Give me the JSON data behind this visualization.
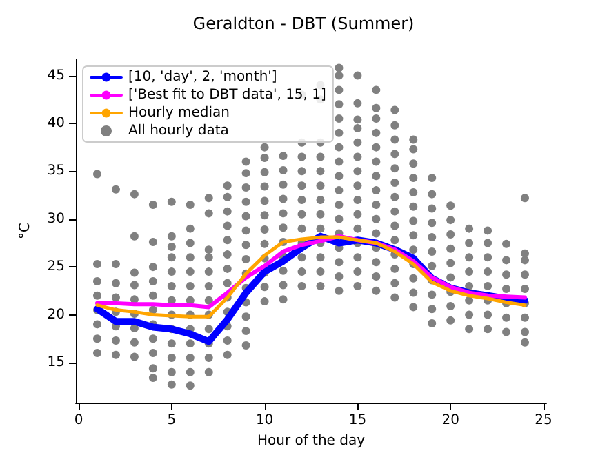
{
  "chart_data": {
    "type": "line",
    "title": "Geraldton - DBT (Summer)",
    "xlabel": "Hour of the day",
    "ylabel": "°C",
    "xlim": [
      -0.15,
      25.15
    ],
    "xticks": [
      0,
      5,
      10,
      15,
      20,
      25
    ],
    "ylim": [
      10.8,
      46.7
    ],
    "yticks": [
      15,
      20,
      25,
      30,
      35,
      40,
      45
    ],
    "grid": false,
    "legend": "top left",
    "line_style": "solid",
    "series": [
      {
        "name": "[10, 'day', 2, 'month']",
        "color": "#0000ff",
        "marker": "none",
        "x": [
          1,
          2,
          3,
          4,
          5,
          6,
          7,
          8,
          9,
          10,
          11,
          12,
          13,
          14,
          15,
          16,
          17,
          18,
          19,
          20,
          21,
          22,
          23,
          24
        ],
        "values": [
          20.6,
          19.3,
          19.3,
          18.7,
          18.5,
          18.0,
          17.2,
          19.5,
          22.3,
          24.5,
          25.6,
          27.0,
          28.2,
          27.5,
          27.8,
          27.5,
          26.8,
          25.9,
          23.8,
          22.8,
          22.3,
          22.0,
          21.7,
          21.5
        ]
      },
      {
        "name": "['Best fit to DBT data', 15, 1]",
        "color": "#ff00ff",
        "marker": "none",
        "x": [
          1,
          2,
          3,
          4,
          5,
          6,
          7,
          8,
          9,
          10,
          11,
          12,
          13,
          14,
          15,
          16,
          17,
          18,
          19,
          20,
          21,
          22,
          23,
          24
        ],
        "values": [
          21.2,
          21.2,
          21.1,
          21.1,
          21.0,
          21.0,
          20.8,
          22.3,
          23.9,
          25.1,
          26.6,
          27.3,
          27.7,
          28.2,
          27.8,
          27.5,
          26.8,
          25.6,
          23.9,
          22.9,
          22.3,
          22.0,
          21.9,
          21.8
        ]
      },
      {
        "name": "Hourly median",
        "color": "#ffa500",
        "marker": "none",
        "x": [
          1,
          2,
          3,
          4,
          5,
          6,
          7,
          8,
          9,
          10,
          11,
          12,
          13,
          14,
          15,
          16,
          17,
          18,
          19,
          20,
          21,
          22,
          23,
          24
        ],
        "values": [
          21.0,
          20.5,
          20.3,
          20.0,
          19.9,
          19.8,
          19.8,
          21.8,
          24.3,
          26.2,
          27.6,
          27.9,
          28.1,
          28.1,
          27.8,
          27.5,
          26.6,
          25.3,
          23.4,
          22.5,
          22.0,
          21.7,
          21.3,
          21.0
        ]
      },
      {
        "name": "All hourly data",
        "type": "scatter",
        "color": "#808080",
        "marker": "circle",
        "x": [
          1,
          1,
          1,
          1,
          1,
          1,
          1,
          1,
          2,
          2,
          2,
          2,
          2,
          2,
          2,
          2,
          3,
          3,
          3,
          3,
          3,
          3,
          3,
          3,
          3,
          4,
          4,
          4,
          4,
          4,
          4,
          4,
          4,
          4,
          4,
          4,
          5,
          5,
          5,
          5,
          5,
          5,
          5,
          5,
          5,
          5,
          5,
          5,
          5,
          6,
          6,
          6,
          6,
          6,
          6,
          6,
          6,
          6,
          6,
          6,
          6,
          6,
          7,
          7,
          7,
          7,
          7,
          7,
          7,
          7,
          7,
          7,
          7,
          7,
          8,
          8,
          8,
          8,
          8,
          8,
          8,
          8,
          8,
          8,
          8,
          8,
          8,
          9,
          9,
          9,
          9,
          9,
          9,
          9,
          9,
          9,
          9,
          9,
          9,
          9,
          9,
          10,
          10,
          10,
          10,
          10,
          10,
          10,
          10,
          10,
          10,
          10,
          10,
          11,
          11,
          11,
          11,
          11,
          11,
          11,
          11,
          11,
          11,
          11,
          12,
          12,
          12,
          12,
          12,
          12,
          12,
          12,
          12,
          12,
          12,
          12,
          13,
          13,
          13,
          13,
          13,
          13,
          13,
          13,
          13,
          13,
          13,
          13,
          13,
          14,
          14,
          14,
          14,
          14,
          14,
          14,
          14,
          14,
          14,
          14,
          14,
          14,
          14,
          14,
          14,
          14,
          15,
          15,
          15,
          15,
          15,
          15,
          15,
          15,
          15,
          15,
          15,
          15,
          15,
          15,
          15,
          16,
          16,
          16,
          16,
          16,
          16,
          16,
          16,
          16,
          16,
          16,
          16,
          16,
          16,
          16,
          17,
          17,
          17,
          17,
          17,
          17,
          17,
          17,
          17,
          17,
          17,
          17,
          17,
          17,
          18,
          18,
          18,
          18,
          18,
          18,
          18,
          18,
          18,
          18,
          18,
          18,
          18,
          19,
          19,
          19,
          19,
          19,
          19,
          19,
          19,
          19,
          19,
          19,
          20,
          20,
          20,
          20,
          20,
          20,
          20,
          20,
          20,
          21,
          21,
          21,
          21,
          21,
          21,
          21,
          21,
          22,
          22,
          22,
          22,
          22,
          22,
          22,
          22,
          23,
          23,
          23,
          23,
          23,
          23,
          23,
          24,
          24,
          24,
          24,
          24,
          24,
          24,
          24,
          24
        ],
        "values": [
          16.0,
          17.5,
          19,
          20.5,
          22,
          23.5,
          25.3,
          34.7,
          15.8,
          17.3,
          18.8,
          20.3,
          21.8,
          23.3,
          25.3,
          33.1,
          15.6,
          17.1,
          18.6,
          20.1,
          21.6,
          23.1,
          24.4,
          28.2,
          32.6,
          13.4,
          14.4,
          16,
          17.5,
          19,
          20.5,
          22,
          23.5,
          25,
          27.6,
          31.5,
          12.7,
          14,
          15.5,
          17,
          18.5,
          20,
          21.5,
          23,
          24.5,
          26,
          27.1,
          28.2,
          31.8,
          12.6,
          14,
          15.5,
          17,
          18.5,
          20,
          21.5,
          23,
          24.5,
          26,
          27.5,
          29,
          31.5,
          14,
          15.5,
          17,
          18.5,
          20,
          21.5,
          23,
          24.5,
          26,
          26.8,
          30.6,
          32.2,
          15.8,
          17.3,
          18.8,
          20.3,
          21.8,
          23.3,
          24.8,
          26.3,
          27.8,
          29.3,
          30.8,
          32.3,
          33.5,
          16.8,
          18.3,
          19.8,
          21.3,
          22.8,
          24.3,
          25.8,
          27.3,
          28.8,
          30.3,
          31.8,
          33.3,
          34.8,
          36,
          21.4,
          22.9,
          24.4,
          25.9,
          27.4,
          28.9,
          30.4,
          31.9,
          33.4,
          34.9,
          36.4,
          37.5,
          21.6,
          23.1,
          24.6,
          26.1,
          27.6,
          29.1,
          30.6,
          32.1,
          33.6,
          35.1,
          36.6,
          23,
          24.5,
          26,
          27.5,
          29,
          30.5,
          32,
          33.5,
          35,
          36.5,
          38,
          43,
          23,
          24.5,
          26,
          27.5,
          29,
          30.5,
          32,
          33.5,
          35,
          36.5,
          38,
          42.5,
          44,
          22.5,
          24,
          25.5,
          27,
          28.5,
          30,
          31.5,
          33,
          34.5,
          36,
          37.5,
          39,
          40.5,
          42,
          43.5,
          45,
          45.8,
          23,
          24.5,
          26,
          27.5,
          29,
          30.5,
          32,
          33.5,
          35,
          36.5,
          38,
          39.5,
          40.4,
          42.1,
          45,
          22.5,
          24,
          25.5,
          27,
          28.5,
          30,
          31.5,
          33,
          34.5,
          36,
          37.5,
          39,
          40.5,
          41.6,
          43.5,
          21.8,
          23.3,
          24.8,
          26.3,
          27.8,
          29.3,
          30.8,
          32.3,
          33.8,
          35.3,
          36.8,
          38.3,
          39.8,
          41.4,
          20.8,
          22.3,
          23.8,
          25.3,
          26.8,
          28.3,
          29.8,
          31.3,
          32.8,
          34.3,
          35.8,
          37.3,
          38.3,
          19.1,
          20.6,
          22.1,
          23.6,
          25.1,
          26.6,
          28.1,
          29.6,
          31.1,
          32.6,
          34.3,
          19.4,
          20.9,
          22.4,
          23.9,
          25.4,
          26.9,
          28.4,
          29.9,
          31.4,
          18.5,
          20,
          21.5,
          23,
          24.5,
          26,
          27.5,
          29,
          18.5,
          20,
          21.5,
          23,
          24.5,
          26,
          27.5,
          28.8,
          18.2,
          19.7,
          21.2,
          22.7,
          24.2,
          25.7,
          27.4,
          17.1,
          18.2,
          19.7,
          21.2,
          22.7,
          24.2,
          25.7,
          26.4,
          32.2
        ]
      }
    ]
  }
}
